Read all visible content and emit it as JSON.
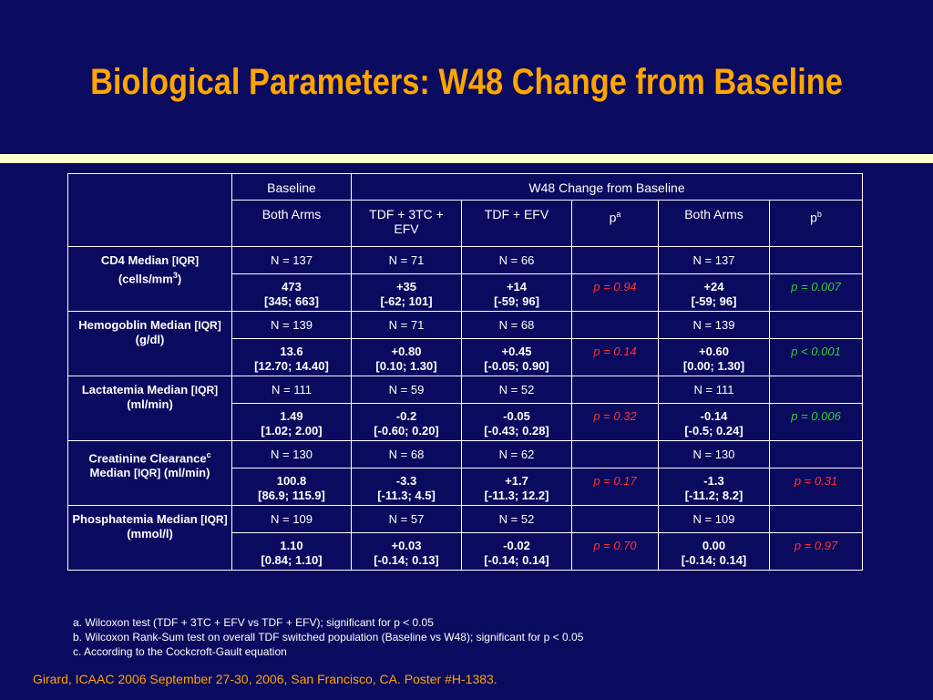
{
  "title": "Biological Parameters: W48 Change from Baseline",
  "header": {
    "baseline": "Baseline",
    "change": "W48 Change from Baseline",
    "both_arms": "Both Arms",
    "tdf_3tc_efv": "TDF + 3TC + EFV",
    "tdf_efv": "TDF + EFV",
    "p": "p",
    "p_sup_a": "a",
    "p_sup_b": "b",
    "both_arms2": "Both Arms"
  },
  "rows": [
    {
      "param": [
        "CD4 Median ",
        "[IQR]",
        " (cells/mm",
        "3",
        ")"
      ],
      "n": [
        "N = 137",
        "N = 71",
        "N = 66",
        "",
        "N = 137",
        ""
      ],
      "v1": [
        "473",
        "+35",
        "+14",
        "p = 0.94",
        "+24",
        "p = 0.007"
      ],
      "v2": [
        "[345; 663]",
        "[-62; 101]",
        "[-59; 96]",
        "",
        "[-59; 96]",
        ""
      ],
      "p_colors": [
        "red",
        "green"
      ]
    },
    {
      "param": [
        "Hemogoblin Median ",
        "[IQR]",
        " (g/dl)"
      ],
      "n": [
        "N = 139",
        "N = 71",
        "N = 68",
        "",
        "N = 139",
        ""
      ],
      "v1": [
        "13.6",
        "+0.80",
        "+0.45",
        "p = 0.14",
        "+0.60",
        "p < 0.001"
      ],
      "v2": [
        "[12.70; 14.40]",
        "[0.10; 1.30]",
        "[-0.05; 0.90]",
        "",
        "[0.00; 1.30]",
        ""
      ],
      "p_colors": [
        "red",
        "green"
      ]
    },
    {
      "param": [
        "Lactatemia Median ",
        "[IQR]",
        "(ml/min)"
      ],
      "n": [
        "N = 111",
        "N = 59",
        "N = 52",
        "",
        "N = 111",
        ""
      ],
      "v1": [
        "1.49",
        "-0.2",
        "-0.05",
        "p = 0.32",
        "-0.14",
        "p = 0.006"
      ],
      "v2": [
        "[1.02; 2.00]",
        "[-0.60; 0.20]",
        "[-0.43; 0.28]",
        "",
        "[-0.5; 0.24]",
        ""
      ],
      "p_colors": [
        "red",
        "green"
      ]
    },
    {
      "param": [
        "Creatinine Clearance",
        "c",
        " Median ",
        "[IQR]",
        " (ml/min)"
      ],
      "n": [
        "N = 130",
        "N = 68",
        "N = 62",
        "",
        "N = 130",
        ""
      ],
      "v1": [
        "100.8",
        "-3.3",
        "+1.7",
        "p = 0.17",
        "-1.3",
        "p = 0.31"
      ],
      "v2": [
        "[86.9; 115.9]",
        "[-11.3; 4.5]",
        "[-11.3; 12.2]",
        "",
        "[-11.2; 8.2]",
        ""
      ],
      "p_colors": [
        "red",
        "red"
      ]
    },
    {
      "param": [
        "Phosphatemia Median ",
        "[IQR]",
        " (mmol/l)"
      ],
      "n": [
        "N = 109",
        "N = 57",
        "N = 52",
        "",
        "N = 109",
        ""
      ],
      "v1": [
        "1.10",
        "+0.03",
        "-0.02",
        "p = 0.70",
        "0.00",
        "p = 0.97"
      ],
      "v2": [
        "[0.84; 1.10]",
        "[-0.14; 0.13]",
        "[-0.14; 0.14]",
        "",
        "[-0.14; 0.14]",
        ""
      ],
      "p_colors": [
        "red",
        "red"
      ]
    }
  ],
  "footnotes": [
    "a.  Wilcoxon test (TDF + 3TC + EFV vs TDF + EFV); significant for p < 0.05",
    "b.  Wilcoxon Rank-Sum test on overall TDF switched population (Baseline vs W48); significant  for p < 0.05",
    "c.  According to the Cockcroft-Gault equation"
  ],
  "citation": "Girard, ICAAC 2006  September 27-30, 2006, San Francisco, CA. Poster #H-1383.",
  "colors": {
    "background": "#0a0a5e",
    "title": "#ffa500",
    "rule": "#ffffcc",
    "p_red": "#ff3333",
    "p_green": "#33cc33"
  }
}
